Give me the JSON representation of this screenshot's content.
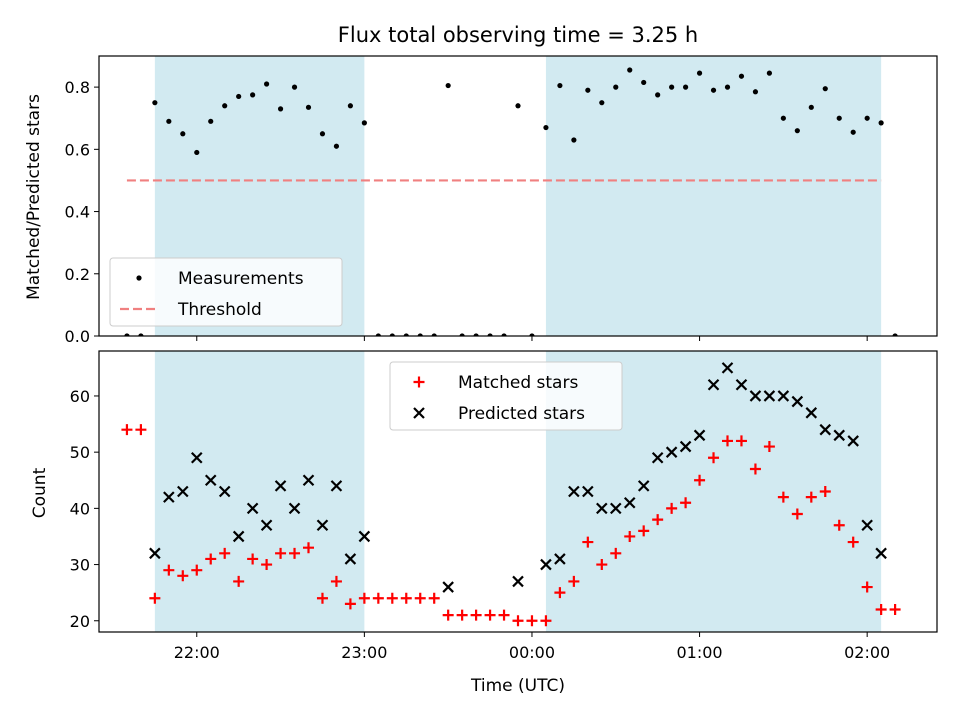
{
  "chart_data": [
    {
      "type": "scatter",
      "title": "Flux total observing time = 3.25 h",
      "ylabel": "Matched/Predicted stars",
      "xlabel": "",
      "ylim": [
        0,
        0.9
      ],
      "yticks": [
        0.0,
        0.2,
        0.4,
        0.6,
        0.8
      ],
      "ytick_labels": [
        "0.0",
        "0.2",
        "0.4",
        "0.6",
        "0.8"
      ],
      "xlim": [
        "21:25",
        "02:25"
      ],
      "xticks": [
        "22:00",
        "23:00",
        "00:00",
        "01:00",
        "02:00"
      ],
      "shaded_intervals": [
        [
          "21:45",
          "23:00"
        ],
        [
          "00:05",
          "02:05"
        ]
      ],
      "shade_color": "#add8e6",
      "legend": {
        "position": "lower-left",
        "entries": [
          "Measurements",
          "Threshold"
        ]
      },
      "threshold": {
        "name": "Threshold",
        "value": 0.5,
        "x_range": [
          "21:35",
          "02:05"
        ],
        "color": "#f08080",
        "style": "dashed"
      },
      "series": [
        {
          "name": "Measurements",
          "color": "#000000",
          "marker": "dot",
          "points": [
            [
              "21:35",
              0.0
            ],
            [
              "21:40",
              0.0
            ],
            [
              "21:45",
              0.75
            ],
            [
              "21:50",
              0.69
            ],
            [
              "21:55",
              0.65
            ],
            [
              "22:00",
              0.59
            ],
            [
              "22:05",
              0.69
            ],
            [
              "22:10",
              0.74
            ],
            [
              "22:15",
              0.77
            ],
            [
              "22:20",
              0.775
            ],
            [
              "22:25",
              0.81
            ],
            [
              "22:30",
              0.73
            ],
            [
              "22:35",
              0.8
            ],
            [
              "22:40",
              0.735
            ],
            [
              "22:45",
              0.65
            ],
            [
              "22:50",
              0.61
            ],
            [
              "22:55",
              0.74
            ],
            [
              "23:00",
              0.685
            ],
            [
              "23:05",
              0.0
            ],
            [
              "23:10",
              0.0
            ],
            [
              "23:15",
              0.0
            ],
            [
              "23:20",
              0.0
            ],
            [
              "23:25",
              0.0
            ],
            [
              "23:30",
              0.805
            ],
            [
              "23:35",
              0.0
            ],
            [
              "23:40",
              0.0
            ],
            [
              "23:45",
              0.0
            ],
            [
              "23:50",
              0.0
            ],
            [
              "23:55",
              0.74
            ],
            [
              "00:00",
              0.0
            ],
            [
              "00:05",
              0.67
            ],
            [
              "00:10",
              0.805
            ],
            [
              "00:15",
              0.63
            ],
            [
              "00:20",
              0.79
            ],
            [
              "00:25",
              0.75
            ],
            [
              "00:30",
              0.8
            ],
            [
              "00:35",
              0.855
            ],
            [
              "00:40",
              0.815
            ],
            [
              "00:45",
              0.775
            ],
            [
              "00:50",
              0.8
            ],
            [
              "00:55",
              0.8
            ],
            [
              "01:00",
              0.845
            ],
            [
              "01:05",
              0.79
            ],
            [
              "01:10",
              0.8
            ],
            [
              "01:15",
              0.835
            ],
            [
              "01:20",
              0.785
            ],
            [
              "01:25",
              0.845
            ],
            [
              "01:30",
              0.7
            ],
            [
              "01:35",
              0.66
            ],
            [
              "01:40",
              0.735
            ],
            [
              "01:45",
              0.795
            ],
            [
              "01:50",
              0.7
            ],
            [
              "01:55",
              0.655
            ],
            [
              "02:00",
              0.7
            ],
            [
              "02:05",
              0.685
            ],
            [
              "02:10",
              0.0
            ]
          ]
        }
      ]
    },
    {
      "type": "scatter",
      "title": "",
      "ylabel": "Count",
      "xlabel": "Time (UTC)",
      "ylim": [
        18,
        68
      ],
      "yticks": [
        20,
        30,
        40,
        50,
        60
      ],
      "ytick_labels": [
        "20",
        "30",
        "40",
        "50",
        "60"
      ],
      "xlim": [
        "21:25",
        "02:25"
      ],
      "xticks": [
        "22:00",
        "23:00",
        "00:00",
        "01:00",
        "02:00"
      ],
      "xtick_labels": [
        "22:00",
        "23:00",
        "00:00",
        "01:00",
        "02:00"
      ],
      "shaded_intervals": [
        [
          "21:45",
          "23:00"
        ],
        [
          "00:05",
          "02:05"
        ]
      ],
      "shade_color": "#add8e6",
      "legend": {
        "position": "upper-center",
        "entries": [
          "Matched stars",
          "Predicted stars"
        ]
      },
      "series": [
        {
          "name": "Matched stars",
          "color": "#ff0000",
          "marker": "plus",
          "points": [
            [
              "21:35",
              54
            ],
            [
              "21:40",
              54
            ],
            [
              "21:45",
              24
            ],
            [
              "21:50",
              29
            ],
            [
              "21:55",
              28
            ],
            [
              "22:00",
              29
            ],
            [
              "22:05",
              31
            ],
            [
              "22:10",
              32
            ],
            [
              "22:15",
              27
            ],
            [
              "22:20",
              31
            ],
            [
              "22:25",
              30
            ],
            [
              "22:30",
              32
            ],
            [
              "22:35",
              32
            ],
            [
              "22:40",
              33
            ],
            [
              "22:45",
              24
            ],
            [
              "22:50",
              27
            ],
            [
              "22:55",
              23
            ],
            [
              "23:00",
              24
            ],
            [
              "23:05",
              24
            ],
            [
              "23:10",
              24
            ],
            [
              "23:15",
              24
            ],
            [
              "23:20",
              24
            ],
            [
              "23:25",
              24
            ],
            [
              "23:30",
              21
            ],
            [
              "23:35",
              21
            ],
            [
              "23:40",
              21
            ],
            [
              "23:45",
              21
            ],
            [
              "23:50",
              21
            ],
            [
              "23:55",
              20
            ],
            [
              "00:00",
              20
            ],
            [
              "00:05",
              20
            ],
            [
              "00:10",
              25
            ],
            [
              "00:15",
              27
            ],
            [
              "00:20",
              34
            ],
            [
              "00:25",
              30
            ],
            [
              "00:30",
              32
            ],
            [
              "00:35",
              35
            ],
            [
              "00:40",
              36
            ],
            [
              "00:45",
              38
            ],
            [
              "00:50",
              40
            ],
            [
              "00:55",
              41
            ],
            [
              "01:00",
              45
            ],
            [
              "01:05",
              49
            ],
            [
              "01:10",
              52
            ],
            [
              "01:15",
              52
            ],
            [
              "01:20",
              47
            ],
            [
              "01:25",
              51
            ],
            [
              "01:30",
              42
            ],
            [
              "01:35",
              39
            ],
            [
              "01:40",
              42
            ],
            [
              "01:45",
              43
            ],
            [
              "01:50",
              37
            ],
            [
              "01:55",
              34
            ],
            [
              "02:00",
              26
            ],
            [
              "02:05",
              22
            ],
            [
              "02:10",
              22
            ]
          ]
        },
        {
          "name": "Predicted stars",
          "color": "#000000",
          "marker": "x",
          "points": [
            [
              "21:45",
              32
            ],
            [
              "21:50",
              42
            ],
            [
              "21:55",
              43
            ],
            [
              "22:00",
              49
            ],
            [
              "22:05",
              45
            ],
            [
              "22:10",
              43
            ],
            [
              "22:15",
              35
            ],
            [
              "22:20",
              40
            ],
            [
              "22:25",
              37
            ],
            [
              "22:30",
              44
            ],
            [
              "22:35",
              40
            ],
            [
              "22:40",
              45
            ],
            [
              "22:45",
              37
            ],
            [
              "22:50",
              44
            ],
            [
              "22:55",
              31
            ],
            [
              "23:00",
              35
            ],
            [
              "23:30",
              26
            ],
            [
              "23:55",
              27
            ],
            [
              "00:05",
              30
            ],
            [
              "00:10",
              31
            ],
            [
              "00:15",
              43
            ],
            [
              "00:20",
              43
            ],
            [
              "00:25",
              40
            ],
            [
              "00:30",
              40
            ],
            [
              "00:35",
              41
            ],
            [
              "00:40",
              44
            ],
            [
              "00:45",
              49
            ],
            [
              "00:50",
              50
            ],
            [
              "00:55",
              51
            ],
            [
              "01:00",
              53
            ],
            [
              "01:05",
              62
            ],
            [
              "01:10",
              65
            ],
            [
              "01:15",
              62
            ],
            [
              "01:20",
              60
            ],
            [
              "01:25",
              60
            ],
            [
              "01:30",
              60
            ],
            [
              "01:35",
              59
            ],
            [
              "01:40",
              57
            ],
            [
              "01:45",
              54
            ],
            [
              "01:50",
              53
            ],
            [
              "01:55",
              52
            ],
            [
              "02:00",
              37
            ],
            [
              "02:05",
              32
            ]
          ]
        }
      ]
    }
  ]
}
